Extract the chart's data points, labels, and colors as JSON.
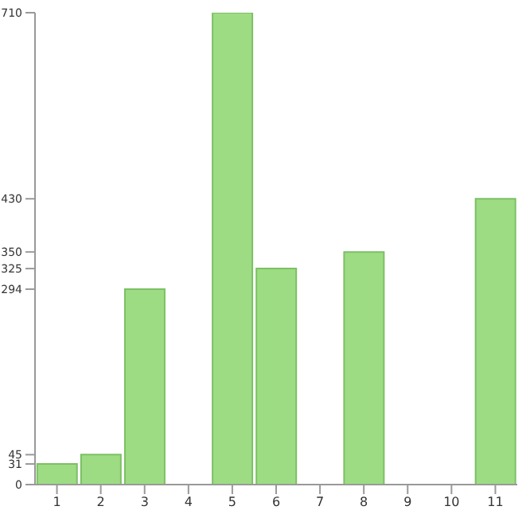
{
  "chart_data": {
    "type": "bar",
    "categories": [
      "1",
      "2",
      "3",
      "4",
      "5",
      "6",
      "7",
      "8",
      "9",
      "10",
      "11"
    ],
    "values": [
      31,
      45,
      294,
      0,
      710,
      325,
      0,
      350,
      0,
      0,
      430
    ],
    "color": "#9edc84",
    "ylim": [
      0,
      710
    ],
    "yticks": [
      0,
      31,
      45,
      294,
      325,
      350,
      430,
      710
    ],
    "grid": false
  }
}
